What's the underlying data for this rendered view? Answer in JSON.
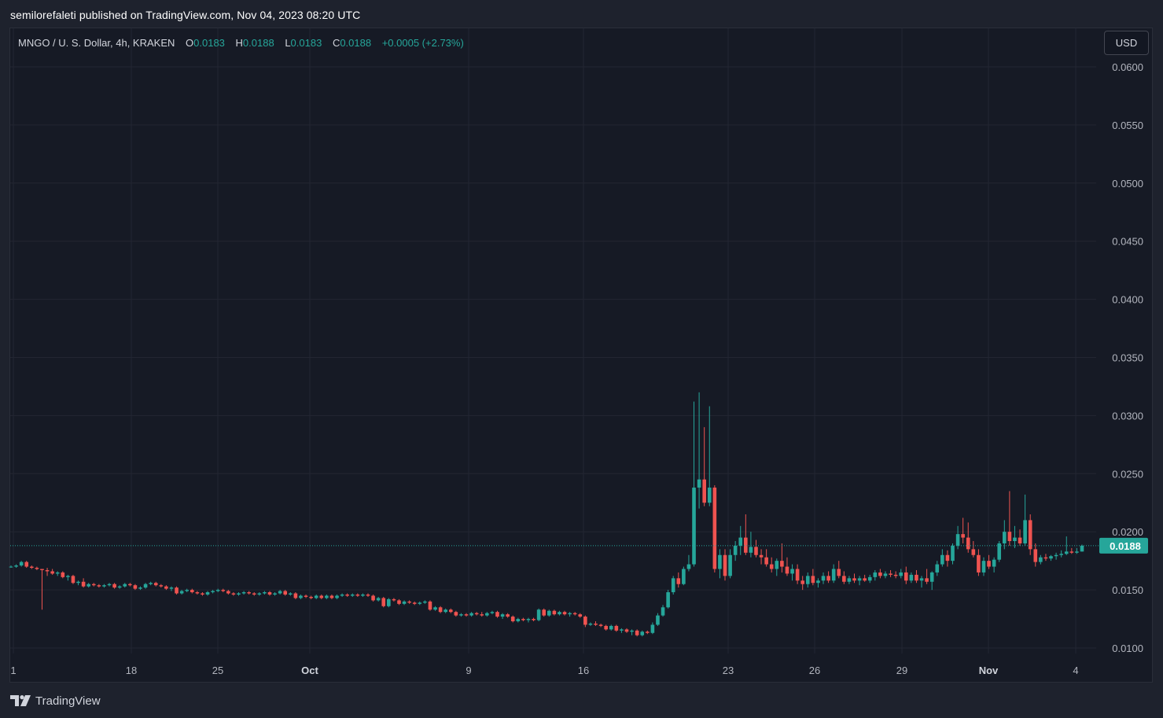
{
  "header": {
    "published": "semilorefaleti published on TradingView.com, Nov 04, 2023 08:20 UTC"
  },
  "legend": {
    "symbol": "MNGO / U. S. Dollar, 4h, KRAKEN",
    "o_label": "O",
    "o_value": "0.0183",
    "h_label": "H",
    "h_value": "0.0188",
    "l_label": "L",
    "l_value": "0.0183",
    "c_label": "C",
    "c_value": "0.0188",
    "change": "+0.0005 (+2.73%)"
  },
  "currency_button": "USD",
  "footer": {
    "brand": "TradingView"
  },
  "colors": {
    "up": "#26a69a",
    "down": "#ef5350",
    "background": "#161a25",
    "text": "#b2b5be"
  },
  "chart_data": {
    "type": "candlestick",
    "y_axis_labels": [
      "0.0600",
      "0.0550",
      "0.0500",
      "0.0450",
      "0.0400",
      "0.0350",
      "0.0300",
      "0.0250",
      "0.0200",
      "0.0150",
      "0.0100"
    ],
    "ylim": [
      0.01,
      0.06
    ],
    "x_axis_labels": [
      "1",
      "18",
      "25",
      "Oct",
      "9",
      "16",
      "23",
      "26",
      "29",
      "Nov",
      "4"
    ],
    "x_axis_bold": [
      "Oct",
      "Nov"
    ],
    "last_price": "0.0188",
    "candles": [
      [
        0.017,
        0.0171,
        0.0169,
        0.017
      ],
      [
        0.017,
        0.0172,
        0.0169,
        0.0171
      ],
      [
        0.0171,
        0.0175,
        0.017,
        0.0174
      ],
      [
        0.0174,
        0.0175,
        0.0169,
        0.017
      ],
      [
        0.017,
        0.0171,
        0.0168,
        0.0169
      ],
      [
        0.0169,
        0.017,
        0.0167,
        0.0168
      ],
      [
        0.0168,
        0.0168,
        0.0133,
        0.0167
      ],
      [
        0.0167,
        0.0169,
        0.0162,
        0.0166
      ],
      [
        0.0166,
        0.0168,
        0.0163,
        0.0164
      ],
      [
        0.0164,
        0.0166,
        0.0162,
        0.0165
      ],
      [
        0.0165,
        0.0166,
        0.016,
        0.0161
      ],
      [
        0.0161,
        0.0163,
        0.0158,
        0.0162
      ],
      [
        0.0162,
        0.0163,
        0.0155,
        0.0156
      ],
      [
        0.0156,
        0.0158,
        0.0154,
        0.0157
      ],
      [
        0.0157,
        0.016,
        0.0152,
        0.0153
      ],
      [
        0.0153,
        0.0156,
        0.0152,
        0.0155
      ],
      [
        0.0155,
        0.0156,
        0.0153,
        0.0154
      ],
      [
        0.0154,
        0.0155,
        0.0152,
        0.0153
      ],
      [
        0.0153,
        0.0155,
        0.0152,
        0.0154
      ],
      [
        0.0154,
        0.0156,
        0.0153,
        0.0155
      ],
      [
        0.0155,
        0.0156,
        0.0151,
        0.0152
      ],
      [
        0.0152,
        0.0154,
        0.0151,
        0.0153
      ],
      [
        0.0153,
        0.0156,
        0.0152,
        0.0155
      ],
      [
        0.0155,
        0.0156,
        0.0153,
        0.0154
      ],
      [
        0.0154,
        0.0155,
        0.015,
        0.0151
      ],
      [
        0.0151,
        0.0153,
        0.015,
        0.0152
      ],
      [
        0.0152,
        0.0156,
        0.0151,
        0.0155
      ],
      [
        0.0155,
        0.0157,
        0.0154,
        0.0156
      ],
      [
        0.0156,
        0.0157,
        0.0153,
        0.0154
      ],
      [
        0.0154,
        0.0155,
        0.0152,
        0.0153
      ],
      [
        0.0153,
        0.0154,
        0.015,
        0.0151
      ],
      [
        0.0151,
        0.0153,
        0.0149,
        0.0152
      ],
      [
        0.0152,
        0.0153,
        0.0146,
        0.0147
      ],
      [
        0.0147,
        0.015,
        0.0146,
        0.0149
      ],
      [
        0.0149,
        0.0151,
        0.0148,
        0.015
      ],
      [
        0.015,
        0.0151,
        0.0147,
        0.0148
      ],
      [
        0.0148,
        0.0149,
        0.0146,
        0.0147
      ],
      [
        0.0147,
        0.0148,
        0.0145,
        0.0146
      ],
      [
        0.0146,
        0.0149,
        0.0145,
        0.0148
      ],
      [
        0.0148,
        0.015,
        0.0147,
        0.0149
      ],
      [
        0.0149,
        0.0151,
        0.0148,
        0.015
      ],
      [
        0.015,
        0.0151,
        0.0148,
        0.0149
      ],
      [
        0.0149,
        0.015,
        0.0146,
        0.0147
      ],
      [
        0.0147,
        0.0148,
        0.0145,
        0.0146
      ],
      [
        0.0146,
        0.0148,
        0.0145,
        0.0147
      ],
      [
        0.0147,
        0.0149,
        0.0146,
        0.0148
      ],
      [
        0.0148,
        0.0149,
        0.0146,
        0.0147
      ],
      [
        0.0147,
        0.0148,
        0.0145,
        0.0146
      ],
      [
        0.0146,
        0.0148,
        0.0145,
        0.0147
      ],
      [
        0.0147,
        0.0149,
        0.0146,
        0.0148
      ],
      [
        0.0148,
        0.0149,
        0.0145,
        0.0146
      ],
      [
        0.0146,
        0.0148,
        0.0145,
        0.0147
      ],
      [
        0.0147,
        0.015,
        0.0146,
        0.0149
      ],
      [
        0.0149,
        0.015,
        0.0145,
        0.0146
      ],
      [
        0.0146,
        0.0148,
        0.0145,
        0.0147
      ],
      [
        0.0147,
        0.0148,
        0.0142,
        0.0143
      ],
      [
        0.0143,
        0.0146,
        0.0142,
        0.0145
      ],
      [
        0.0145,
        0.0146,
        0.0143,
        0.0144
      ],
      [
        0.0144,
        0.0145,
        0.0142,
        0.0143
      ],
      [
        0.0143,
        0.0146,
        0.0142,
        0.0145
      ],
      [
        0.0145,
        0.0146,
        0.0142,
        0.0143
      ],
      [
        0.0143,
        0.0146,
        0.0142,
        0.0145
      ],
      [
        0.0145,
        0.0146,
        0.0142,
        0.0143
      ],
      [
        0.0143,
        0.0146,
        0.0142,
        0.0145
      ],
      [
        0.0145,
        0.0147,
        0.0144,
        0.0146
      ],
      [
        0.0146,
        0.0147,
        0.0144,
        0.0145
      ],
      [
        0.0145,
        0.0147,
        0.0144,
        0.0146
      ],
      [
        0.0146,
        0.0147,
        0.0144,
        0.0145
      ],
      [
        0.0145,
        0.0147,
        0.0144,
        0.0146
      ],
      [
        0.0146,
        0.0147,
        0.0144,
        0.0145
      ],
      [
        0.0145,
        0.0146,
        0.014,
        0.0141
      ],
      [
        0.0141,
        0.0144,
        0.014,
        0.0143
      ],
      [
        0.0143,
        0.0144,
        0.0135,
        0.0136
      ],
      [
        0.0136,
        0.0143,
        0.0135,
        0.0142
      ],
      [
        0.0142,
        0.0143,
        0.014,
        0.0141
      ],
      [
        0.0141,
        0.0142,
        0.0137,
        0.0138
      ],
      [
        0.0138,
        0.0141,
        0.0137,
        0.014
      ],
      [
        0.014,
        0.0141,
        0.0138,
        0.0139
      ],
      [
        0.0139,
        0.014,
        0.0137,
        0.0138
      ],
      [
        0.0138,
        0.014,
        0.0137,
        0.0139
      ],
      [
        0.0139,
        0.0141,
        0.0138,
        0.014
      ],
      [
        0.014,
        0.0141,
        0.0132,
        0.0133
      ],
      [
        0.0133,
        0.0136,
        0.0132,
        0.0135
      ],
      [
        0.0135,
        0.0136,
        0.013,
        0.0131
      ],
      [
        0.0131,
        0.0134,
        0.013,
        0.0133
      ],
      [
        0.0133,
        0.0134,
        0.013,
        0.0131
      ],
      [
        0.0131,
        0.0132,
        0.0127,
        0.0128
      ],
      [
        0.0128,
        0.013,
        0.0127,
        0.0129
      ],
      [
        0.0129,
        0.013,
        0.0127,
        0.0128
      ],
      [
        0.0128,
        0.0131,
        0.0127,
        0.013
      ],
      [
        0.013,
        0.0131,
        0.0128,
        0.0129
      ],
      [
        0.0129,
        0.0131,
        0.0127,
        0.0128
      ],
      [
        0.0128,
        0.0131,
        0.0127,
        0.013
      ],
      [
        0.013,
        0.0132,
        0.0129,
        0.0131
      ],
      [
        0.0131,
        0.0132,
        0.0126,
        0.0127
      ],
      [
        0.0127,
        0.013,
        0.0125,
        0.0129
      ],
      [
        0.0129,
        0.013,
        0.0126,
        0.0127
      ],
      [
        0.0127,
        0.0128,
        0.0122,
        0.0123
      ],
      [
        0.0123,
        0.0126,
        0.0122,
        0.0125
      ],
      [
        0.0125,
        0.0126,
        0.0123,
        0.0124
      ],
      [
        0.0124,
        0.0126,
        0.0122,
        0.0125
      ],
      [
        0.0125,
        0.0126,
        0.0123,
        0.0124
      ],
      [
        0.0124,
        0.0134,
        0.0123,
        0.0133
      ],
      [
        0.0133,
        0.0134,
        0.0127,
        0.0128
      ],
      [
        0.0128,
        0.0133,
        0.0127,
        0.0132
      ],
      [
        0.0132,
        0.0133,
        0.0128,
        0.0129
      ],
      [
        0.0129,
        0.0132,
        0.0128,
        0.0131
      ],
      [
        0.0131,
        0.0132,
        0.0128,
        0.0129
      ],
      [
        0.0129,
        0.0131,
        0.0127,
        0.013
      ],
      [
        0.013,
        0.0131,
        0.0128,
        0.0129
      ],
      [
        0.0129,
        0.013,
        0.0126,
        0.0127
      ],
      [
        0.0127,
        0.0128,
        0.0118,
        0.012
      ],
      [
        0.012,
        0.0122,
        0.0119,
        0.0121
      ],
      [
        0.0121,
        0.0123,
        0.0119,
        0.012
      ],
      [
        0.012,
        0.0121,
        0.0118,
        0.0119
      ],
      [
        0.0119,
        0.012,
        0.0115,
        0.0116
      ],
      [
        0.0116,
        0.012,
        0.0115,
        0.0119
      ],
      [
        0.0119,
        0.012,
        0.0114,
        0.0115
      ],
      [
        0.0115,
        0.0117,
        0.0113,
        0.0116
      ],
      [
        0.0116,
        0.0117,
        0.0113,
        0.0114
      ],
      [
        0.0114,
        0.0116,
        0.0111,
        0.0115
      ],
      [
        0.0115,
        0.0116,
        0.011,
        0.0111
      ],
      [
        0.0111,
        0.0115,
        0.011,
        0.0114
      ],
      [
        0.0114,
        0.0115,
        0.0112,
        0.0113
      ],
      [
        0.0113,
        0.0122,
        0.0112,
        0.012
      ],
      [
        0.012,
        0.013,
        0.0119,
        0.0128
      ],
      [
        0.0128,
        0.0137,
        0.0127,
        0.0135
      ],
      [
        0.0135,
        0.015,
        0.0134,
        0.0148
      ],
      [
        0.0148,
        0.0162,
        0.0146,
        0.016
      ],
      [
        0.016,
        0.0165,
        0.0152,
        0.0155
      ],
      [
        0.0155,
        0.017,
        0.0154,
        0.0168
      ],
      [
        0.0168,
        0.018,
        0.0166,
        0.0172
      ],
      [
        0.0172,
        0.0312,
        0.017,
        0.0238
      ],
      [
        0.0238,
        0.032,
        0.022,
        0.0245
      ],
      [
        0.0245,
        0.029,
        0.0222,
        0.0225
      ],
      [
        0.0225,
        0.0308,
        0.0222,
        0.0238
      ],
      [
        0.0238,
        0.024,
        0.0165,
        0.0168
      ],
      [
        0.0168,
        0.0185,
        0.016,
        0.018
      ],
      [
        0.018,
        0.0185,
        0.0158,
        0.0162
      ],
      [
        0.0162,
        0.0185,
        0.016,
        0.018
      ],
      [
        0.018,
        0.0192,
        0.0175,
        0.0188
      ],
      [
        0.0188,
        0.0205,
        0.018,
        0.0195
      ],
      [
        0.0195,
        0.0215,
        0.018,
        0.0182
      ],
      [
        0.0182,
        0.02,
        0.0178,
        0.0187
      ],
      [
        0.0187,
        0.0193,
        0.0178,
        0.018
      ],
      [
        0.018,
        0.0185,
        0.0172,
        0.0178
      ],
      [
        0.0178,
        0.0185,
        0.017,
        0.0172
      ],
      [
        0.0172,
        0.0178,
        0.0165,
        0.0168
      ],
      [
        0.0168,
        0.0177,
        0.0162,
        0.0175
      ],
      [
        0.0175,
        0.019,
        0.0165,
        0.017
      ],
      [
        0.017,
        0.0178,
        0.0162,
        0.0164
      ],
      [
        0.0164,
        0.0172,
        0.0158,
        0.0168
      ],
      [
        0.0168,
        0.0172,
        0.0155,
        0.0158
      ],
      [
        0.0158,
        0.0162,
        0.015,
        0.0155
      ],
      [
        0.0155,
        0.0165,
        0.0152,
        0.0162
      ],
      [
        0.0162,
        0.0168,
        0.0154,
        0.0156
      ],
      [
        0.0156,
        0.016,
        0.0152,
        0.0158
      ],
      [
        0.0158,
        0.0165,
        0.0155,
        0.0162
      ],
      [
        0.0162,
        0.0166,
        0.0156,
        0.0158
      ],
      [
        0.0158,
        0.0172,
        0.0156,
        0.0168
      ],
      [
        0.0168,
        0.0175,
        0.016,
        0.0162
      ],
      [
        0.0162,
        0.0166,
        0.0155,
        0.0157
      ],
      [
        0.0157,
        0.0162,
        0.0155,
        0.016
      ],
      [
        0.016,
        0.0164,
        0.0156,
        0.0158
      ],
      [
        0.0158,
        0.0162,
        0.0154,
        0.016
      ],
      [
        0.016,
        0.0163,
        0.0157,
        0.0158
      ],
      [
        0.0158,
        0.0163,
        0.0156,
        0.0161
      ],
      [
        0.0161,
        0.0167,
        0.0158,
        0.0165
      ],
      [
        0.0165,
        0.0168,
        0.016,
        0.0162
      ],
      [
        0.0162,
        0.0166,
        0.016,
        0.0164
      ],
      [
        0.0164,
        0.0167,
        0.0161,
        0.0163
      ],
      [
        0.0163,
        0.0166,
        0.016,
        0.0162
      ],
      [
        0.0162,
        0.0168,
        0.016,
        0.0165
      ],
      [
        0.0165,
        0.017,
        0.0155,
        0.0158
      ],
      [
        0.0158,
        0.0165,
        0.0156,
        0.0163
      ],
      [
        0.0163,
        0.0167,
        0.0156,
        0.0158
      ],
      [
        0.0158,
        0.0162,
        0.0152,
        0.016
      ],
      [
        0.016,
        0.0168,
        0.0155,
        0.0157
      ],
      [
        0.0157,
        0.0166,
        0.015,
        0.0165
      ],
      [
        0.0165,
        0.0175,
        0.0162,
        0.0172
      ],
      [
        0.0172,
        0.0185,
        0.017,
        0.018
      ],
      [
        0.018,
        0.0184,
        0.017,
        0.0175
      ],
      [
        0.0175,
        0.019,
        0.0172,
        0.0188
      ],
      [
        0.0188,
        0.0205,
        0.0185,
        0.0198
      ],
      [
        0.0198,
        0.0212,
        0.019,
        0.0195
      ],
      [
        0.0195,
        0.0208,
        0.0182,
        0.0185
      ],
      [
        0.0185,
        0.0192,
        0.0178,
        0.018
      ],
      [
        0.018,
        0.0185,
        0.0162,
        0.0165
      ],
      [
        0.0165,
        0.0178,
        0.0162,
        0.0175
      ],
      [
        0.0175,
        0.018,
        0.0168,
        0.017
      ],
      [
        0.017,
        0.0178,
        0.0165,
        0.0176
      ],
      [
        0.0176,
        0.0192,
        0.0174,
        0.019
      ],
      [
        0.019,
        0.021,
        0.0185,
        0.02
      ],
      [
        0.02,
        0.0235,
        0.0188,
        0.0192
      ],
      [
        0.0192,
        0.0205,
        0.0186,
        0.0195
      ],
      [
        0.0195,
        0.0202,
        0.0188,
        0.019
      ],
      [
        0.019,
        0.0232,
        0.0188,
        0.021
      ],
      [
        0.021,
        0.0215,
        0.018,
        0.0185
      ],
      [
        0.0185,
        0.019,
        0.017,
        0.0174
      ],
      [
        0.0174,
        0.018,
        0.0172,
        0.0178
      ],
      [
        0.0178,
        0.0181,
        0.0175,
        0.0177
      ],
      [
        0.0177,
        0.018,
        0.0175,
        0.0179
      ],
      [
        0.0179,
        0.0182,
        0.0176,
        0.018
      ],
      [
        0.018,
        0.0184,
        0.0178,
        0.0181
      ],
      [
        0.0181,
        0.0196,
        0.018,
        0.0183
      ],
      [
        0.0183,
        0.0186,
        0.0181,
        0.0182
      ],
      [
        0.0182,
        0.0186,
        0.0181,
        0.0183
      ],
      [
        0.0183,
        0.0189,
        0.0183,
        0.0188
      ]
    ]
  }
}
